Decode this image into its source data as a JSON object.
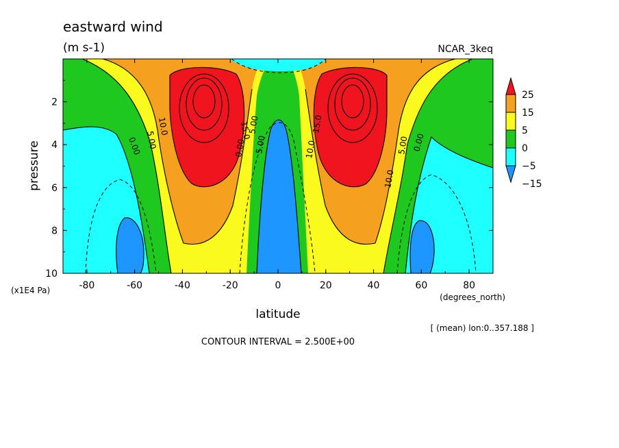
{
  "chart_data": {
    "type": "contour",
    "title": "eastward wind",
    "units": "(m s-1)",
    "dataset": "NCAR_3keq",
    "xlabel": "latitude",
    "xunits": "(degrees_north)",
    "ylabel": "pressure",
    "yunits": "(x1E4 Pa)",
    "xlim": [
      -90,
      90
    ],
    "ylim": [
      10,
      0
    ],
    "x_ticks": [
      "-80",
      "-60",
      "-40",
      "-20",
      "0",
      "20",
      "40",
      "60",
      "80"
    ],
    "y_ticks": [
      "2",
      "4",
      "6",
      "8",
      "10"
    ],
    "x_tick_values": [
      -80,
      -60,
      -40,
      -20,
      0,
      20,
      40,
      60,
      80
    ],
    "y_tick_values": [
      2,
      4,
      6,
      8,
      10
    ],
    "mean_note": "[ (mean) lon:0..357.188 ]",
    "contour_interval_text": "CONTOUR INTERVAL = 2.500E+00",
    "contour_interval": 2.5,
    "colorbar": {
      "labels": [
        "25",
        "15",
        "5",
        "0",
        "−5",
        "−15"
      ],
      "levels": [
        25,
        15,
        5,
        0,
        -5,
        -15
      ],
      "colors": [
        "#f0141e",
        "#f5a01e",
        "#fafa1e",
        "#1ec81e",
        "#1effff",
        "#1e96ff"
      ]
    },
    "contour_labels": [
      "0.00",
      "5.00",
      "10.0",
      "15.0",
      "5.00",
      "0.00",
      "5.00",
      "10.0",
      "15.0",
      "5.00",
      "0.00",
      "10.0"
    ],
    "jets": [
      {
        "lat": -30,
        "pressure": 2.0,
        "max": 37.5
      },
      {
        "lat": 30,
        "pressure": 2.0,
        "max": 37.5
      }
    ]
  }
}
